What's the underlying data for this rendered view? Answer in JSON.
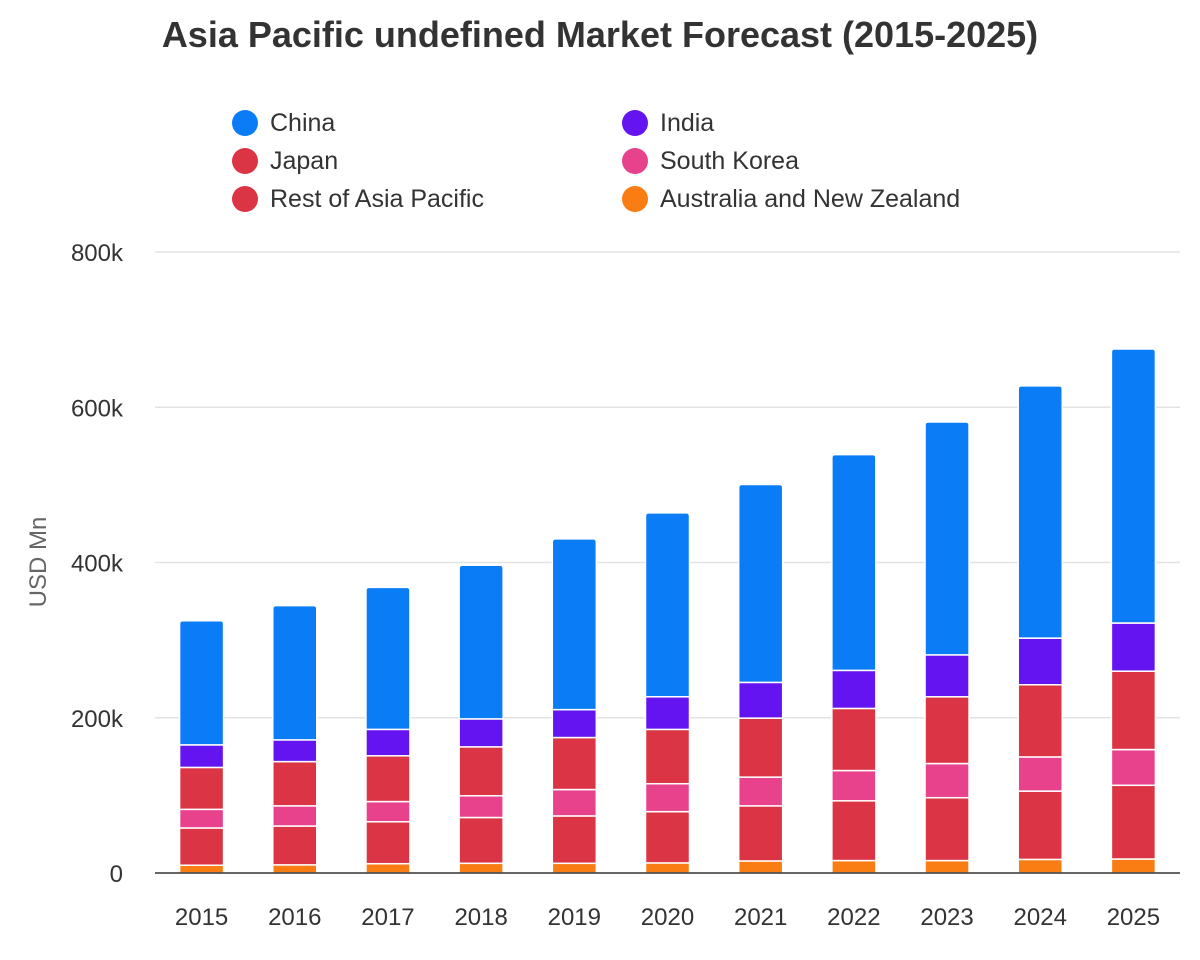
{
  "chart_data": {
    "type": "bar",
    "stacked": true,
    "title": "Asia Pacific undefined Market Forecast (2015-2025)",
    "xlabel": "",
    "ylabel": "USD Mn",
    "ylim": [
      0,
      800000
    ],
    "yticks": [
      0,
      200000,
      400000,
      600000,
      800000
    ],
    "ytick_labels": [
      "0",
      "200k",
      "400k",
      "600k",
      "800k"
    ],
    "grid": true,
    "legend_position": "top",
    "categories": [
      "2015",
      "2016",
      "2017",
      "2018",
      "2019",
      "2020",
      "2021",
      "2022",
      "2023",
      "2024",
      "2025"
    ],
    "series": [
      {
        "name": "Australia and New Zealand",
        "color": "#FA7D14",
        "values": [
          10000,
          10500,
          12000,
          12500,
          12500,
          13000,
          15500,
          16000,
          16000,
          17500,
          18000
        ]
      },
      {
        "name": "Japan",
        "color": "#DB3545",
        "values": [
          48000,
          50000,
          54000,
          59000,
          61000,
          66000,
          71000,
          77000,
          81000,
          88000,
          95000
        ]
      },
      {
        "name": "South Korea",
        "color": "#E8428C",
        "values": [
          24000,
          26000,
          26000,
          28000,
          34000,
          36000,
          37000,
          39000,
          44000,
          44000,
          46000
        ]
      },
      {
        "name": "Rest of Asia Pacific",
        "color": "#DB3545",
        "values": [
          54000,
          57000,
          59000,
          63000,
          67000,
          70000,
          76000,
          80000,
          86000,
          93000,
          101000
        ]
      },
      {
        "name": "India",
        "color": "#6414F0",
        "values": [
          29000,
          28000,
          34000,
          36000,
          36000,
          42000,
          46000,
          49000,
          54000,
          60000,
          62000
        ]
      },
      {
        "name": "China",
        "color": "#0A7CF6",
        "values": [
          160000,
          173000,
          183000,
          198000,
          220000,
          237000,
          255000,
          278000,
          300000,
          325000,
          353000
        ]
      }
    ],
    "legend": [
      {
        "name": "China",
        "color": "#0A7CF6"
      },
      {
        "name": "India",
        "color": "#6414F0"
      },
      {
        "name": "Japan",
        "color": "#DB3545"
      },
      {
        "name": "South Korea",
        "color": "#E8428C"
      },
      {
        "name": "Rest of Asia Pacific",
        "color": "#DB3545"
      },
      {
        "name": "Australia and New Zealand",
        "color": "#FA7D14"
      }
    ]
  }
}
